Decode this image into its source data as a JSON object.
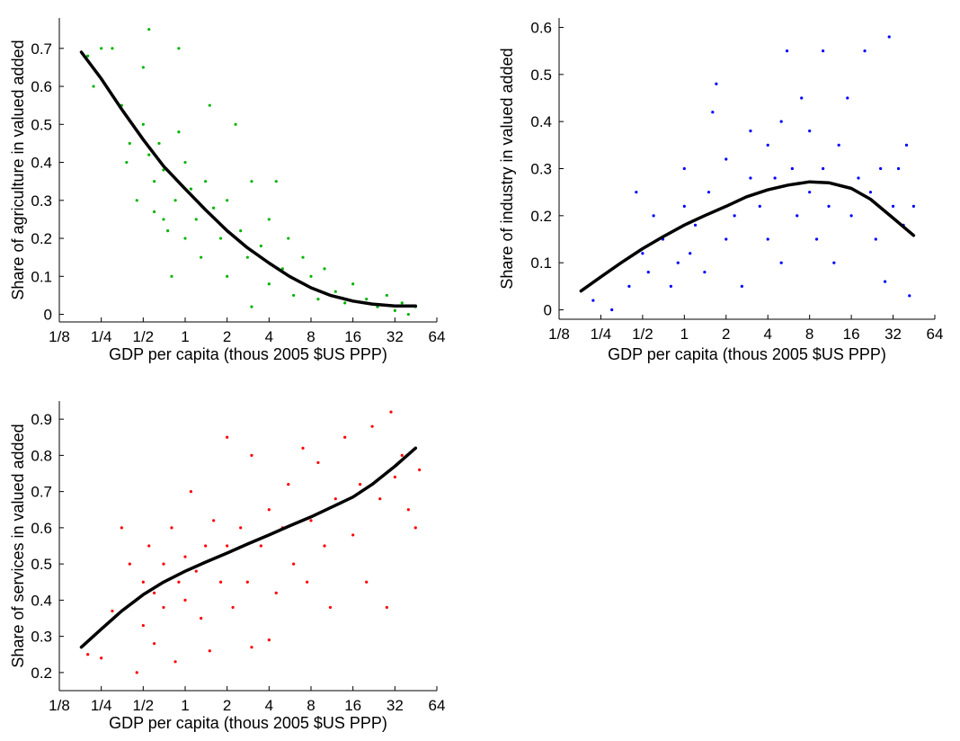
{
  "chart_data": [
    {
      "type": "scatter",
      "title": "",
      "xlabel": "GDP per capita (thous 2005 $US PPP)",
      "ylabel": "Share of agriculture in valued added",
      "xscale": "log2",
      "xlim": [
        0.125,
        64
      ],
      "ylim": [
        -0.02,
        0.78
      ],
      "xticks": [
        0.125,
        0.25,
        0.5,
        1,
        2,
        4,
        8,
        16,
        32,
        64
      ],
      "xticklabels": [
        "1/8",
        "1/4",
        "1/2",
        "1",
        "2",
        "4",
        "8",
        "16",
        "32",
        "64"
      ],
      "yticks": [
        0,
        0.1,
        0.2,
        0.3,
        0.4,
        0.5,
        0.6,
        0.7
      ],
      "yticklabels": [
        "0",
        "0.1",
        "0.2",
        "0.3",
        "0.4",
        "0.5",
        "0.6",
        "0.7"
      ],
      "grid": false,
      "series": [
        {
          "marker_color": "#00b400",
          "points": [
            [
              0.2,
              0.68
            ],
            [
              0.22,
              0.6
            ],
            [
              0.25,
              0.7
            ],
            [
              0.3,
              0.7
            ],
            [
              0.35,
              0.55
            ],
            [
              0.38,
              0.4
            ],
            [
              0.4,
              0.45
            ],
            [
              0.45,
              0.3
            ],
            [
              0.5,
              0.5
            ],
            [
              0.5,
              0.65
            ],
            [
              0.55,
              0.75
            ],
            [
              0.55,
              0.42
            ],
            [
              0.6,
              0.35
            ],
            [
              0.6,
              0.27
            ],
            [
              0.65,
              0.45
            ],
            [
              0.7,
              0.38
            ],
            [
              0.7,
              0.25
            ],
            [
              0.75,
              0.22
            ],
            [
              0.8,
              0.1
            ],
            [
              0.85,
              0.3
            ],
            [
              0.9,
              0.48
            ],
            [
              0.9,
              0.7
            ],
            [
              1,
              0.4
            ],
            [
              1,
              0.2
            ],
            [
              1.1,
              0.33
            ],
            [
              1.2,
              0.25
            ],
            [
              1.3,
              0.15
            ],
            [
              1.4,
              0.35
            ],
            [
              1.5,
              0.55
            ],
            [
              1.6,
              0.28
            ],
            [
              1.8,
              0.2
            ],
            [
              2,
              0.3
            ],
            [
              2,
              0.1
            ],
            [
              2.3,
              0.5
            ],
            [
              2.5,
              0.22
            ],
            [
              2.8,
              0.15
            ],
            [
              3,
              0.35
            ],
            [
              3,
              0.02
            ],
            [
              3.5,
              0.18
            ],
            [
              4,
              0.25
            ],
            [
              4,
              0.08
            ],
            [
              4.5,
              0.35
            ],
            [
              5,
              0.12
            ],
            [
              5.5,
              0.2
            ],
            [
              6,
              0.05
            ],
            [
              7,
              0.15
            ],
            [
              8,
              0.1
            ],
            [
              9,
              0.04
            ],
            [
              10,
              0.12
            ],
            [
              12,
              0.06
            ],
            [
              14,
              0.03
            ],
            [
              16,
              0.08
            ],
            [
              20,
              0.04
            ],
            [
              24,
              0.02
            ],
            [
              28,
              0.05
            ],
            [
              32,
              0.01
            ],
            [
              36,
              0.03
            ],
            [
              40,
              0.0
            ],
            [
              45,
              0.02
            ]
          ]
        }
      ],
      "fit_line": {
        "color": "#000000",
        "x": [
          0.18,
          0.25,
          0.35,
          0.5,
          0.7,
          1,
          1.4,
          2,
          2.8,
          4,
          5.6,
          8,
          11,
          16,
          22,
          32,
          45
        ],
        "y": [
          0.69,
          0.62,
          0.54,
          0.46,
          0.39,
          0.33,
          0.275,
          0.22,
          0.175,
          0.135,
          0.1,
          0.07,
          0.05,
          0.035,
          0.027,
          0.022,
          0.022
        ]
      }
    },
    {
      "type": "scatter",
      "title": "",
      "xlabel": "GDP per capita (thous 2005 $US PPP)",
      "ylabel": "Share of industry in valued added",
      "xscale": "log2",
      "xlim": [
        0.125,
        64
      ],
      "ylim": [
        -0.02,
        0.62
      ],
      "xticks": [
        0.125,
        0.25,
        0.5,
        1,
        2,
        4,
        8,
        16,
        32,
        64
      ],
      "xticklabels": [
        "1/8",
        "1/4",
        "1/2",
        "1",
        "2",
        "4",
        "8",
        "16",
        "32",
        "64"
      ],
      "yticks": [
        0,
        0.1,
        0.2,
        0.3,
        0.4,
        0.5,
        0.6
      ],
      "yticklabels": [
        "0",
        "0.1",
        "0.2",
        "0.3",
        "0.4",
        "0.5",
        "0.6"
      ],
      "grid": false,
      "series": [
        {
          "marker_color": "#0000ff",
          "points": [
            [
              0.22,
              0.02
            ],
            [
              0.3,
              0.0
            ],
            [
              0.4,
              0.05
            ],
            [
              0.45,
              0.25
            ],
            [
              0.5,
              0.12
            ],
            [
              0.55,
              0.08
            ],
            [
              0.6,
              0.2
            ],
            [
              0.7,
              0.15
            ],
            [
              0.8,
              0.05
            ],
            [
              0.9,
              0.1
            ],
            [
              1,
              0.22
            ],
            [
              1,
              0.3
            ],
            [
              1.1,
              0.12
            ],
            [
              1.2,
              0.18
            ],
            [
              1.4,
              0.08
            ],
            [
              1.5,
              0.25
            ],
            [
              1.6,
              0.42
            ],
            [
              1.7,
              0.48
            ],
            [
              2,
              0.15
            ],
            [
              2,
              0.32
            ],
            [
              2.3,
              0.2
            ],
            [
              2.6,
              0.05
            ],
            [
              3,
              0.28
            ],
            [
              3,
              0.38
            ],
            [
              3.5,
              0.22
            ],
            [
              4,
              0.15
            ],
            [
              4,
              0.35
            ],
            [
              4.5,
              0.28
            ],
            [
              5,
              0.4
            ],
            [
              5,
              0.1
            ],
            [
              5.5,
              0.55
            ],
            [
              6,
              0.3
            ],
            [
              6.5,
              0.2
            ],
            [
              7,
              0.45
            ],
            [
              8,
              0.25
            ],
            [
              8,
              0.38
            ],
            [
              9,
              0.15
            ],
            [
              10,
              0.3
            ],
            [
              10,
              0.55
            ],
            [
              11,
              0.22
            ],
            [
              12,
              0.1
            ],
            [
              13,
              0.35
            ],
            [
              15,
              0.45
            ],
            [
              16,
              0.2
            ],
            [
              18,
              0.28
            ],
            [
              20,
              0.55
            ],
            [
              22,
              0.25
            ],
            [
              24,
              0.15
            ],
            [
              26,
              0.3
            ],
            [
              28,
              0.06
            ],
            [
              30,
              0.58
            ],
            [
              32,
              0.22
            ],
            [
              35,
              0.3
            ],
            [
              38,
              0.18
            ],
            [
              40,
              0.35
            ],
            [
              42,
              0.03
            ],
            [
              45,
              0.22
            ]
          ]
        }
      ],
      "fit_line": {
        "color": "#000000",
        "x": [
          0.18,
          0.25,
          0.35,
          0.5,
          0.7,
          1,
          1.4,
          2,
          2.8,
          4,
          5.6,
          8,
          11,
          16,
          22,
          32,
          45
        ],
        "y": [
          0.04,
          0.07,
          0.1,
          0.13,
          0.155,
          0.18,
          0.2,
          0.22,
          0.24,
          0.255,
          0.265,
          0.272,
          0.27,
          0.258,
          0.235,
          0.195,
          0.158
        ]
      }
    },
    {
      "type": "scatter",
      "title": "",
      "xlabel": "GDP per capita (thous 2005 $US PPP)",
      "ylabel": "Share of services in valued added",
      "xscale": "log2",
      "xlim": [
        0.125,
        64
      ],
      "ylim": [
        0.15,
        0.95
      ],
      "xticks": [
        0.125,
        0.25,
        0.5,
        1,
        2,
        4,
        8,
        16,
        32,
        64
      ],
      "xticklabels": [
        "1/8",
        "1/4",
        "1/2",
        "1",
        "2",
        "4",
        "8",
        "16",
        "32",
        "64"
      ],
      "yticks": [
        0.2,
        0.3,
        0.4,
        0.5,
        0.6,
        0.7,
        0.8,
        0.9
      ],
      "yticklabels": [
        "0.2",
        "0.3",
        "0.4",
        "0.5",
        "0.6",
        "0.7",
        "0.8",
        "0.9"
      ],
      "grid": false,
      "series": [
        {
          "marker_color": "#ff0000",
          "points": [
            [
              0.2,
              0.25
            ],
            [
              0.25,
              0.24
            ],
            [
              0.3,
              0.37
            ],
            [
              0.35,
              0.6
            ],
            [
              0.4,
              0.5
            ],
            [
              0.45,
              0.2
            ],
            [
              0.5,
              0.45
            ],
            [
              0.5,
              0.33
            ],
            [
              0.55,
              0.55
            ],
            [
              0.6,
              0.28
            ],
            [
              0.6,
              0.42
            ],
            [
              0.7,
              0.5
            ],
            [
              0.7,
              0.38
            ],
            [
              0.8,
              0.6
            ],
            [
              0.85,
              0.23
            ],
            [
              0.9,
              0.45
            ],
            [
              1,
              0.52
            ],
            [
              1,
              0.4
            ],
            [
              1.1,
              0.7
            ],
            [
              1.2,
              0.48
            ],
            [
              1.3,
              0.35
            ],
            [
              1.4,
              0.55
            ],
            [
              1.5,
              0.26
            ],
            [
              1.6,
              0.62
            ],
            [
              1.8,
              0.45
            ],
            [
              2,
              0.55
            ],
            [
              2,
              0.85
            ],
            [
              2.2,
              0.38
            ],
            [
              2.5,
              0.6
            ],
            [
              2.8,
              0.45
            ],
            [
              3,
              0.8
            ],
            [
              3,
              0.27
            ],
            [
              3.5,
              0.55
            ],
            [
              4,
              0.65
            ],
            [
              4,
              0.29
            ],
            [
              4.5,
              0.42
            ],
            [
              5,
              0.6
            ],
            [
              5.5,
              0.72
            ],
            [
              6,
              0.5
            ],
            [
              7,
              0.82
            ],
            [
              7.5,
              0.45
            ],
            [
              8,
              0.62
            ],
            [
              9,
              0.78
            ],
            [
              10,
              0.55
            ],
            [
              11,
              0.38
            ],
            [
              12,
              0.68
            ],
            [
              14,
              0.85
            ],
            [
              16,
              0.58
            ],
            [
              18,
              0.72
            ],
            [
              20,
              0.45
            ],
            [
              22,
              0.88
            ],
            [
              25,
              0.68
            ],
            [
              28,
              0.38
            ],
            [
              30,
              0.92
            ],
            [
              32,
              0.74
            ],
            [
              36,
              0.8
            ],
            [
              40,
              0.65
            ],
            [
              45,
              0.6
            ],
            [
              48,
              0.76
            ]
          ]
        }
      ],
      "fit_line": {
        "color": "#000000",
        "x": [
          0.18,
          0.25,
          0.35,
          0.5,
          0.7,
          1,
          1.4,
          2,
          2.8,
          4,
          5.6,
          8,
          11,
          16,
          22,
          32,
          45
        ],
        "y": [
          0.27,
          0.32,
          0.37,
          0.415,
          0.45,
          0.48,
          0.505,
          0.53,
          0.555,
          0.58,
          0.605,
          0.63,
          0.655,
          0.685,
          0.72,
          0.77,
          0.82
        ]
      }
    }
  ]
}
